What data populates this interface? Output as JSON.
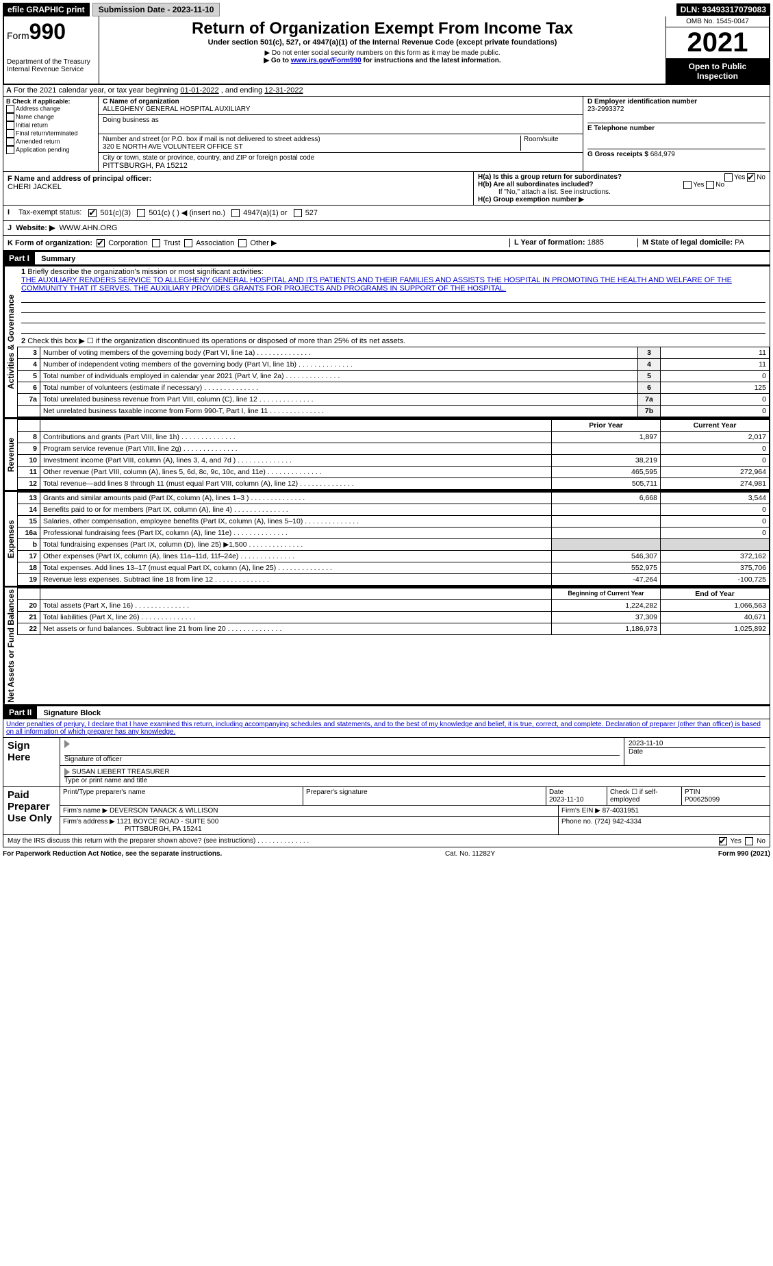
{
  "topbar": {
    "efile": "efile GRAPHIC print",
    "submission_label": "Submission Date - 2023-11-10",
    "dln": "DLN: 93493317079083"
  },
  "header": {
    "form_word": "Form",
    "form_num": "990",
    "title": "Return of Organization Exempt From Income Tax",
    "subtitle": "Under section 501(c), 527, or 4947(a)(1) of the Internal Revenue Code (except private foundations)",
    "note1": "▶ Do not enter social security numbers on this form as it may be made public.",
    "note2_pre": "▶ Go to ",
    "note2_link": "www.irs.gov/Form990",
    "note2_post": " for instructions and the latest information.",
    "dept": "Department of the Treasury",
    "irs": "Internal Revenue Service",
    "omb": "OMB No. 1545-0047",
    "year": "2021",
    "open": "Open to Public Inspection"
  },
  "periodA": {
    "text_pre": "For the 2021 calendar year, or tax year beginning ",
    "begin": "01-01-2022",
    "mid": " , and ending ",
    "end": "12-31-2022"
  },
  "boxB": {
    "label": "B Check if applicable:",
    "items": [
      "Address change",
      "Name change",
      "Initial return",
      "Final return/terminated",
      "Amended return",
      "Application pending"
    ]
  },
  "boxC": {
    "label": "C Name of organization",
    "name": "ALLEGHENY GENERAL HOSPITAL AUXILIARY",
    "dba_label": "Doing business as",
    "street_label": "Number and street (or P.O. box if mail is not delivered to street address)",
    "room_label": "Room/suite",
    "street": "320 E NORTH AVE VOLUNTEER OFFICE ST",
    "city_label": "City or town, state or province, country, and ZIP or foreign postal code",
    "city": "PITTSBURGH, PA  15212"
  },
  "boxD": {
    "label": "D Employer identification number",
    "val": "23-2993372"
  },
  "boxE": {
    "label": "E Telephone number",
    "val": ""
  },
  "boxG": {
    "label": "G Gross receipts $",
    "val": "684,979"
  },
  "boxF": {
    "label": "F Name and address of principal officer:",
    "val": "CHERI JACKEL"
  },
  "boxH": {
    "a": "H(a) Is this a group return for subordinates?",
    "b": "H(b) Are all subordinates included?",
    "b_note": "If \"No,\" attach a list. See instructions.",
    "c": "H(c) Group exemption number ▶",
    "yes": "Yes",
    "no": "No"
  },
  "boxI": {
    "label": "Tax-exempt status:",
    "o1": "501(c)(3)",
    "o2": "501(c) (  ) ◀ (insert no.)",
    "o3": "4947(a)(1) or",
    "o4": "527"
  },
  "boxJ": {
    "label": "Website: ▶",
    "val": "WWW.AHN.ORG"
  },
  "boxK": {
    "label": "K Form of organization:",
    "o1": "Corporation",
    "o2": "Trust",
    "o3": "Association",
    "o4": "Other ▶"
  },
  "boxL": {
    "label": "L Year of formation:",
    "val": "1885"
  },
  "boxM": {
    "label": "M State of legal domicile:",
    "val": "PA"
  },
  "part1": {
    "tag": "Part I",
    "title": "Summary",
    "side_gov": "Activities & Governance",
    "side_rev": "Revenue",
    "side_exp": "Expenses",
    "side_net": "Net Assets or Fund Balances",
    "l1": "Briefly describe the organization's mission or most significant activities:",
    "mission": "THE AUXILIARY RENDERS SERVICE TO ALLEGHENY GENERAL HOSPITAL AND ITS PATIENTS AND THEIR FAMILIES AND ASSISTS THE HOSPITAL IN PROMOTING THE HEALTH AND WELFARE OF THE COMMUNITY THAT IT SERVES. THE AUXILIARY PROVIDES GRANTS FOR PROJECTS AND PROGRAMS IN SUPPORT OF THE HOSPITAL.",
    "l2": "Check this box ▶ ☐ if the organization discontinued its operations or disposed of more than 25% of its net assets.",
    "rows_gov": [
      {
        "n": "3",
        "t": "Number of voting members of the governing body (Part VI, line 1a)",
        "b": "3",
        "v": "11"
      },
      {
        "n": "4",
        "t": "Number of independent voting members of the governing body (Part VI, line 1b)",
        "b": "4",
        "v": "11"
      },
      {
        "n": "5",
        "t": "Total number of individuals employed in calendar year 2021 (Part V, line 2a)",
        "b": "5",
        "v": "0"
      },
      {
        "n": "6",
        "t": "Total number of volunteers (estimate if necessary)",
        "b": "6",
        "v": "125"
      },
      {
        "n": "7a",
        "t": "Total unrelated business revenue from Part VIII, column (C), line 12",
        "b": "7a",
        "v": "0"
      },
      {
        "n": "",
        "t": "Net unrelated business taxable income from Form 990-T, Part I, line 11",
        "b": "7b",
        "v": "0"
      }
    ],
    "col_prior": "Prior Year",
    "col_current": "Current Year",
    "rows_rev": [
      {
        "n": "8",
        "t": "Contributions and grants (Part VIII, line 1h)",
        "p": "1,897",
        "c": "2,017"
      },
      {
        "n": "9",
        "t": "Program service revenue (Part VIII, line 2g)",
        "p": "",
        "c": "0"
      },
      {
        "n": "10",
        "t": "Investment income (Part VIII, column (A), lines 3, 4, and 7d )",
        "p": "38,219",
        "c": "0"
      },
      {
        "n": "11",
        "t": "Other revenue (Part VIII, column (A), lines 5, 6d, 8c, 9c, 10c, and 11e)",
        "p": "465,595",
        "c": "272,964"
      },
      {
        "n": "12",
        "t": "Total revenue—add lines 8 through 11 (must equal Part VIII, column (A), line 12)",
        "p": "505,711",
        "c": "274,981"
      }
    ],
    "rows_exp": [
      {
        "n": "13",
        "t": "Grants and similar amounts paid (Part IX, column (A), lines 1–3 )",
        "p": "6,668",
        "c": "3,544"
      },
      {
        "n": "14",
        "t": "Benefits paid to or for members (Part IX, column (A), line 4)",
        "p": "",
        "c": "0"
      },
      {
        "n": "15",
        "t": "Salaries, other compensation, employee benefits (Part IX, column (A), lines 5–10)",
        "p": "",
        "c": "0"
      },
      {
        "n": "16a",
        "t": "Professional fundraising fees (Part IX, column (A), line 11e)",
        "p": "",
        "c": "0"
      },
      {
        "n": "b",
        "t": "Total fundraising expenses (Part IX, column (D), line 25) ▶1,500",
        "p": "SHADE",
        "c": "SHADE"
      },
      {
        "n": "17",
        "t": "Other expenses (Part IX, column (A), lines 11a–11d, 11f–24e)",
        "p": "546,307",
        "c": "372,162"
      },
      {
        "n": "18",
        "t": "Total expenses. Add lines 13–17 (must equal Part IX, column (A), line 25)",
        "p": "552,975",
        "c": "375,706"
      },
      {
        "n": "19",
        "t": "Revenue less expenses. Subtract line 18 from line 12",
        "p": "-47,264",
        "c": "-100,725"
      }
    ],
    "col_begin": "Beginning of Current Year",
    "col_end": "End of Year",
    "rows_net": [
      {
        "n": "20",
        "t": "Total assets (Part X, line 16)",
        "p": "1,224,282",
        "c": "1,066,563"
      },
      {
        "n": "21",
        "t": "Total liabilities (Part X, line 26)",
        "p": "37,309",
        "c": "40,671"
      },
      {
        "n": "22",
        "t": "Net assets or fund balances. Subtract line 21 from line 20",
        "p": "1,186,973",
        "c": "1,025,892"
      }
    ]
  },
  "part2": {
    "tag": "Part II",
    "title": "Signature Block",
    "decl": "Under penalties of perjury, I declare that I have examined this return, including accompanying schedules and statements, and to the best of my knowledge and belief, it is true, correct, and complete. Declaration of preparer (other than officer) is based on all information of which preparer has any knowledge.",
    "sign_here": "Sign Here",
    "sig_officer": "Signature of officer",
    "sig_date": "Date",
    "sig_date_val": "2023-11-10",
    "name_title": "SUSAN LIEBERT TREASURER",
    "name_label": "Type or print name and title",
    "paid": "Paid Preparer Use Only",
    "pp_name_label": "Print/Type preparer's name",
    "pp_sig_label": "Preparer's signature",
    "pp_date_label": "Date",
    "pp_date": "2023-11-10",
    "pp_check": "Check ☐ if self-employed",
    "ptin_label": "PTIN",
    "ptin": "P00625099",
    "firm_name_label": "Firm's name ▶",
    "firm_name": "DEVERSON TANACK & WILLISON",
    "firm_ein_label": "Firm's EIN ▶",
    "firm_ein": "87-4031951",
    "firm_addr_label": "Firm's address ▶",
    "firm_addr": "1121 BOYCE ROAD - SUITE 500",
    "firm_city": "PITTSBURGH, PA  15241",
    "phone_label": "Phone no.",
    "phone": "(724) 942-4334",
    "may_irs": "May the IRS discuss this return with the preparer shown above? (see instructions)",
    "yes": "Yes",
    "no": "No"
  },
  "footer": {
    "l": "For Paperwork Reduction Act Notice, see the separate instructions.",
    "m": "Cat. No. 11282Y",
    "r": "Form 990 (2021)"
  }
}
